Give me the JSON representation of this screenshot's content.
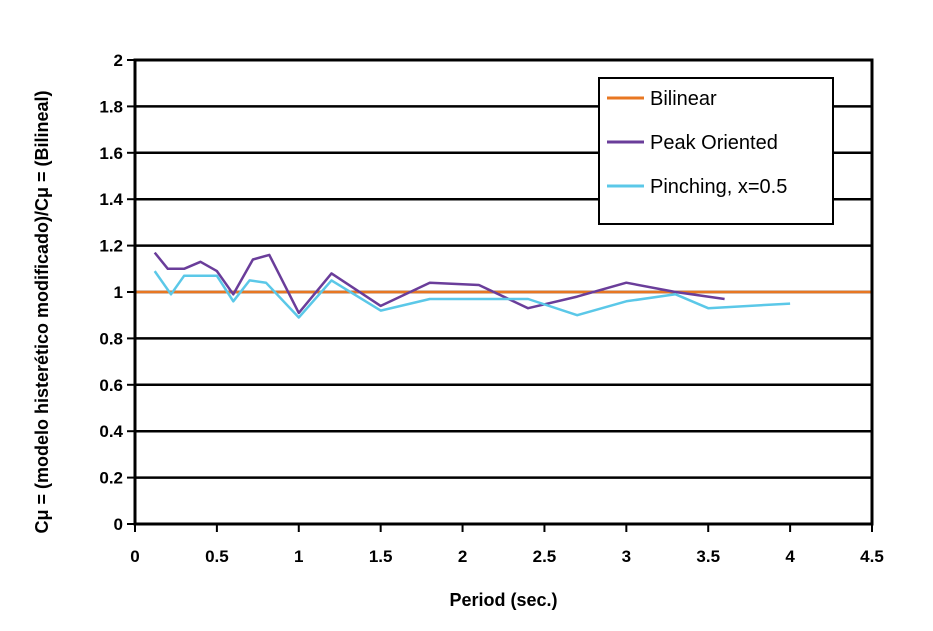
{
  "chart_data": {
    "type": "line",
    "title": "",
    "xlabel": "Period (sec.)",
    "ylabel": "Cμ = (modelo histerético modificado)/Cμ = (Bilineal)",
    "xlim": [
      0,
      4.5
    ],
    "ylim": [
      0,
      2
    ],
    "xticks": [
      0,
      0.5,
      1,
      1.5,
      2,
      2.5,
      3,
      3.5,
      4,
      4.5
    ],
    "xtick_labels": [
      "0",
      "0.5",
      "1",
      "1.5",
      "2",
      "2.5",
      "3",
      "3.5",
      "4",
      "4.5"
    ],
    "yticks": [
      0,
      0.2,
      0.4,
      0.6,
      0.8,
      1,
      1.2,
      1.4,
      1.6,
      1.8,
      2
    ],
    "ytick_labels": [
      "0",
      "0.2",
      "0.4",
      "0.6",
      "0.8",
      "1",
      "1.2",
      "1.4",
      "1.6",
      "1.8",
      "2"
    ],
    "grid": "horizontal",
    "legend_position": "top-right",
    "series": [
      {
        "name": "Bilinear",
        "color": "#e87722",
        "x": [
          0,
          4.5
        ],
        "y": [
          1.0,
          1.0
        ]
      },
      {
        "name": "Peak Oriented",
        "color": "#6a3d9a",
        "x": [
          0.12,
          0.2,
          0.3,
          0.4,
          0.5,
          0.6,
          0.72,
          0.82,
          1.0,
          1.2,
          1.5,
          1.8,
          2.1,
          2.4,
          2.7,
          3.0,
          3.3,
          3.6
        ],
        "y": [
          1.17,
          1.1,
          1.1,
          1.13,
          1.09,
          0.99,
          1.14,
          1.16,
          0.91,
          1.08,
          0.94,
          1.04,
          1.03,
          0.93,
          0.98,
          1.04,
          1.0,
          0.97
        ]
      },
      {
        "name": "Pinching, x=0.5",
        "color": "#5bc8e8",
        "x": [
          0.12,
          0.22,
          0.3,
          0.4,
          0.5,
          0.6,
          0.7,
          0.8,
          1.0,
          1.2,
          1.5,
          1.8,
          2.1,
          2.4,
          2.7,
          3.0,
          3.3,
          3.5,
          4.0
        ],
        "y": [
          1.09,
          0.99,
          1.07,
          1.07,
          1.07,
          0.96,
          1.05,
          1.04,
          0.89,
          1.05,
          0.92,
          0.97,
          0.97,
          0.97,
          0.9,
          0.96,
          0.99,
          0.93,
          0.95
        ]
      }
    ]
  }
}
